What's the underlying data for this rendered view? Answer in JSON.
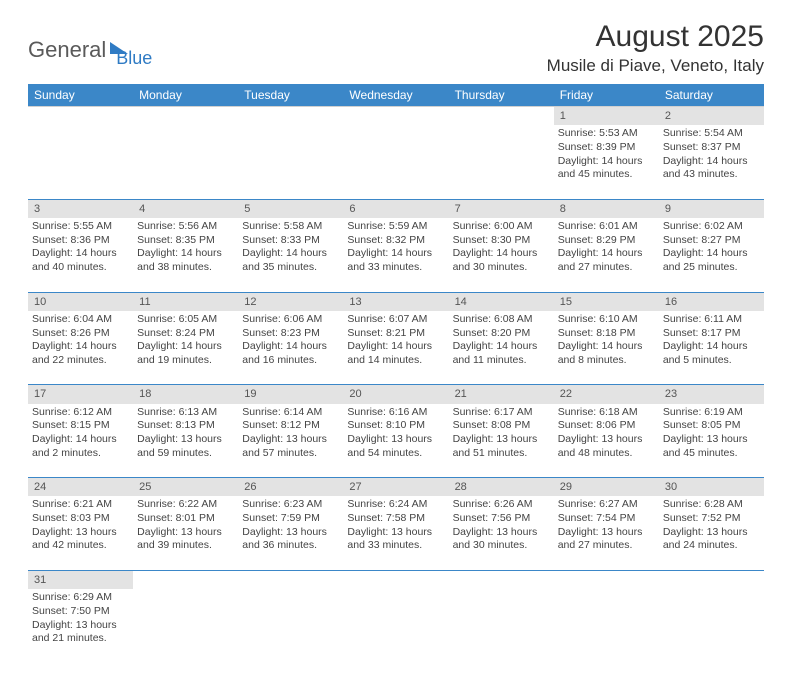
{
  "logo": {
    "text1": "General",
    "text2": "Blue"
  },
  "title": "August 2025",
  "location": "Musile di Piave, Veneto, Italy",
  "weekdays": [
    "Sunday",
    "Monday",
    "Tuesday",
    "Wednesday",
    "Thursday",
    "Friday",
    "Saturday"
  ],
  "colors": {
    "header_bg": "#3b87c8",
    "header_text": "#ffffff",
    "daynum_bg": "#e3e3e3",
    "row_border": "#3b87c8"
  },
  "weeks": [
    {
      "days": [
        {
          "num": "",
          "lines": []
        },
        {
          "num": "",
          "lines": []
        },
        {
          "num": "",
          "lines": []
        },
        {
          "num": "",
          "lines": []
        },
        {
          "num": "",
          "lines": []
        },
        {
          "num": "1",
          "lines": [
            "Sunrise: 5:53 AM",
            "Sunset: 8:39 PM",
            "Daylight: 14 hours and 45 minutes."
          ]
        },
        {
          "num": "2",
          "lines": [
            "Sunrise: 5:54 AM",
            "Sunset: 8:37 PM",
            "Daylight: 14 hours and 43 minutes."
          ]
        }
      ]
    },
    {
      "days": [
        {
          "num": "3",
          "lines": [
            "Sunrise: 5:55 AM",
            "Sunset: 8:36 PM",
            "Daylight: 14 hours and 40 minutes."
          ]
        },
        {
          "num": "4",
          "lines": [
            "Sunrise: 5:56 AM",
            "Sunset: 8:35 PM",
            "Daylight: 14 hours and 38 minutes."
          ]
        },
        {
          "num": "5",
          "lines": [
            "Sunrise: 5:58 AM",
            "Sunset: 8:33 PM",
            "Daylight: 14 hours and 35 minutes."
          ]
        },
        {
          "num": "6",
          "lines": [
            "Sunrise: 5:59 AM",
            "Sunset: 8:32 PM",
            "Daylight: 14 hours and 33 minutes."
          ]
        },
        {
          "num": "7",
          "lines": [
            "Sunrise: 6:00 AM",
            "Sunset: 8:30 PM",
            "Daylight: 14 hours and 30 minutes."
          ]
        },
        {
          "num": "8",
          "lines": [
            "Sunrise: 6:01 AM",
            "Sunset: 8:29 PM",
            "Daylight: 14 hours and 27 minutes."
          ]
        },
        {
          "num": "9",
          "lines": [
            "Sunrise: 6:02 AM",
            "Sunset: 8:27 PM",
            "Daylight: 14 hours and 25 minutes."
          ]
        }
      ]
    },
    {
      "days": [
        {
          "num": "10",
          "lines": [
            "Sunrise: 6:04 AM",
            "Sunset: 8:26 PM",
            "Daylight: 14 hours and 22 minutes."
          ]
        },
        {
          "num": "11",
          "lines": [
            "Sunrise: 6:05 AM",
            "Sunset: 8:24 PM",
            "Daylight: 14 hours and 19 minutes."
          ]
        },
        {
          "num": "12",
          "lines": [
            "Sunrise: 6:06 AM",
            "Sunset: 8:23 PM",
            "Daylight: 14 hours and 16 minutes."
          ]
        },
        {
          "num": "13",
          "lines": [
            "Sunrise: 6:07 AM",
            "Sunset: 8:21 PM",
            "Daylight: 14 hours and 14 minutes."
          ]
        },
        {
          "num": "14",
          "lines": [
            "Sunrise: 6:08 AM",
            "Sunset: 8:20 PM",
            "Daylight: 14 hours and 11 minutes."
          ]
        },
        {
          "num": "15",
          "lines": [
            "Sunrise: 6:10 AM",
            "Sunset: 8:18 PM",
            "Daylight: 14 hours and 8 minutes."
          ]
        },
        {
          "num": "16",
          "lines": [
            "Sunrise: 6:11 AM",
            "Sunset: 8:17 PM",
            "Daylight: 14 hours and 5 minutes."
          ]
        }
      ]
    },
    {
      "days": [
        {
          "num": "17",
          "lines": [
            "Sunrise: 6:12 AM",
            "Sunset: 8:15 PM",
            "Daylight: 14 hours and 2 minutes."
          ]
        },
        {
          "num": "18",
          "lines": [
            "Sunrise: 6:13 AM",
            "Sunset: 8:13 PM",
            "Daylight: 13 hours and 59 minutes."
          ]
        },
        {
          "num": "19",
          "lines": [
            "Sunrise: 6:14 AM",
            "Sunset: 8:12 PM",
            "Daylight: 13 hours and 57 minutes."
          ]
        },
        {
          "num": "20",
          "lines": [
            "Sunrise: 6:16 AM",
            "Sunset: 8:10 PM",
            "Daylight: 13 hours and 54 minutes."
          ]
        },
        {
          "num": "21",
          "lines": [
            "Sunrise: 6:17 AM",
            "Sunset: 8:08 PM",
            "Daylight: 13 hours and 51 minutes."
          ]
        },
        {
          "num": "22",
          "lines": [
            "Sunrise: 6:18 AM",
            "Sunset: 8:06 PM",
            "Daylight: 13 hours and 48 minutes."
          ]
        },
        {
          "num": "23",
          "lines": [
            "Sunrise: 6:19 AM",
            "Sunset: 8:05 PM",
            "Daylight: 13 hours and 45 minutes."
          ]
        }
      ]
    },
    {
      "days": [
        {
          "num": "24",
          "lines": [
            "Sunrise: 6:21 AM",
            "Sunset: 8:03 PM",
            "Daylight: 13 hours and 42 minutes."
          ]
        },
        {
          "num": "25",
          "lines": [
            "Sunrise: 6:22 AM",
            "Sunset: 8:01 PM",
            "Daylight: 13 hours and 39 minutes."
          ]
        },
        {
          "num": "26",
          "lines": [
            "Sunrise: 6:23 AM",
            "Sunset: 7:59 PM",
            "Daylight: 13 hours and 36 minutes."
          ]
        },
        {
          "num": "27",
          "lines": [
            "Sunrise: 6:24 AM",
            "Sunset: 7:58 PM",
            "Daylight: 13 hours and 33 minutes."
          ]
        },
        {
          "num": "28",
          "lines": [
            "Sunrise: 6:26 AM",
            "Sunset: 7:56 PM",
            "Daylight: 13 hours and 30 minutes."
          ]
        },
        {
          "num": "29",
          "lines": [
            "Sunrise: 6:27 AM",
            "Sunset: 7:54 PM",
            "Daylight: 13 hours and 27 minutes."
          ]
        },
        {
          "num": "30",
          "lines": [
            "Sunrise: 6:28 AM",
            "Sunset: 7:52 PM",
            "Daylight: 13 hours and 24 minutes."
          ]
        }
      ]
    },
    {
      "days": [
        {
          "num": "31",
          "lines": [
            "Sunrise: 6:29 AM",
            "Sunset: 7:50 PM",
            "Daylight: 13 hours and 21 minutes."
          ]
        },
        {
          "num": "",
          "lines": []
        },
        {
          "num": "",
          "lines": []
        },
        {
          "num": "",
          "lines": []
        },
        {
          "num": "",
          "lines": []
        },
        {
          "num": "",
          "lines": []
        },
        {
          "num": "",
          "lines": []
        }
      ]
    }
  ]
}
